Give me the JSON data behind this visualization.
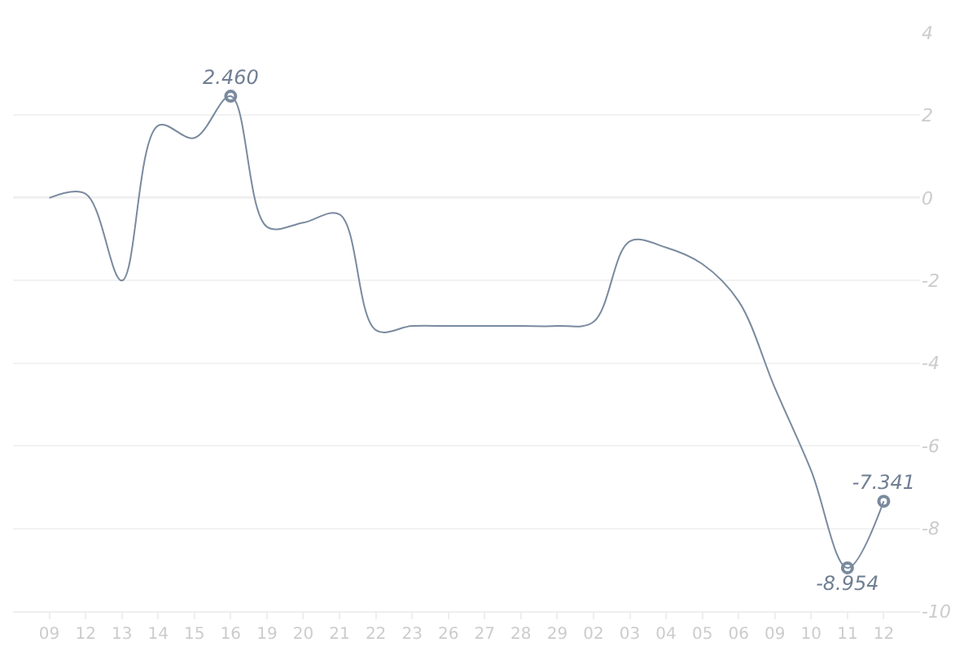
{
  "chart_data": {
    "type": "line",
    "categories": [
      "09",
      "12",
      "13",
      "14",
      "15",
      "16",
      "19",
      "20",
      "21",
      "22",
      "23",
      "26",
      "27",
      "28",
      "29",
      "02",
      "03",
      "04",
      "05",
      "06",
      "09",
      "10",
      "11",
      "12"
    ],
    "series": [
      {
        "color": "#7a8a9e",
        "values": [
          0.0,
          0.1,
          -2.0,
          1.75,
          1.45,
          2.46,
          -0.7,
          -0.6,
          -0.4,
          -3.2,
          -3.1,
          -3.1,
          -3.1,
          -3.1,
          -3.1,
          -3.0,
          -1.05,
          -1.2,
          -1.6,
          -2.5,
          -4.6,
          -6.6,
          -8.954,
          -7.341
        ],
        "value_labels": [
          null,
          null,
          null,
          null,
          null,
          "2.460",
          null,
          null,
          null,
          null,
          null,
          null,
          null,
          null,
          null,
          null,
          null,
          null,
          null,
          null,
          null,
          null,
          "-8.954",
          "-7.341"
        ]
      }
    ],
    "ylim": [
      -10,
      4
    ],
    "yticks": [
      -10,
      -8,
      -6,
      -4,
      -2,
      0,
      2,
      4
    ],
    "grid": "y",
    "line_style": "solid",
    "ref_lines": [
      {
        "axis": "y",
        "value": 0,
        "color": "#b8b8b8"
      }
    ]
  }
}
